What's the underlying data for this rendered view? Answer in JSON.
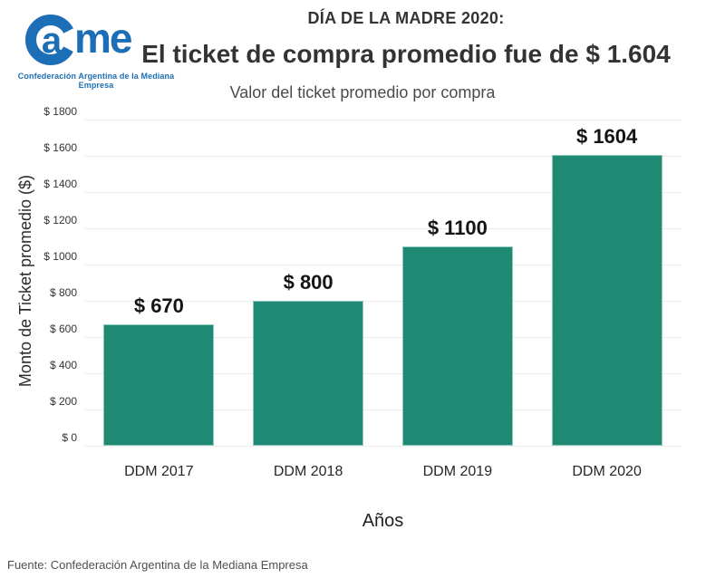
{
  "logo": {
    "letter_a": "a",
    "letters_me": "me",
    "subtitle": "Confederación Argentina de la Mediana Empresa",
    "color": "#1C6FB6"
  },
  "header": {
    "kicker": "DÍA DE LA MADRE 2020:",
    "title": "El ticket de compra promedio fue de $ 1.604"
  },
  "chart_data": {
    "type": "bar",
    "title": "Valor del ticket promedio por compra",
    "categories": [
      "DDM 2017",
      "DDM 2018",
      "DDM 2019",
      "DDM 2020"
    ],
    "values": [
      670,
      800,
      1100,
      1604
    ],
    "value_labels": [
      "$ 670",
      "$ 800",
      "$ 1100",
      "$ 1604"
    ],
    "xlabel": "Años",
    "ylabel": "Monto de Ticket promedio ($)",
    "ylim": [
      0,
      1800
    ],
    "ytick_step": 200,
    "ytick_labels": [
      "$ 0",
      "$ 200",
      "$ 400",
      "$ 600",
      "$ 800",
      "$ 1000",
      "$ 1200",
      "$ 1400",
      "$ 1600",
      "$ 1800"
    ],
    "bar_color": "#1E8A74",
    "grid": "horizontal-major-only",
    "legend": "none"
  },
  "footer": {
    "source": "Fuente: Confederación Argentina de la Mediana Empresa"
  },
  "colors": {
    "bar": "#1E8A74",
    "logo_blue": "#1C6FB6",
    "title_text": "#333333",
    "gridline": "#EAEAEA"
  }
}
